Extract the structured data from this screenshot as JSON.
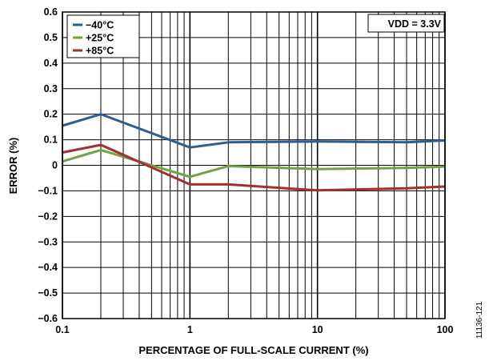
{
  "chart_data": {
    "type": "line",
    "x_scale": "log",
    "xlim": [
      0.1,
      100
    ],
    "ylim": [
      -0.6,
      0.6
    ],
    "xlabel": "PERCENTAGE OF FULL-SCALE CURRENT (%)",
    "ylabel": "ERROR (%)",
    "x_ticks": [
      {
        "value": 0.1,
        "label": "0.1"
      },
      {
        "value": 1,
        "label": "1"
      },
      {
        "value": 10,
        "label": "10"
      },
      {
        "value": 100,
        "label": "100"
      }
    ],
    "y_ticks": [
      {
        "value": 0.6,
        "label": "0.6"
      },
      {
        "value": 0.5,
        "label": "0.5"
      },
      {
        "value": 0.4,
        "label": "0.4"
      },
      {
        "value": 0.3,
        "label": "0.3"
      },
      {
        "value": 0.2,
        "label": "0.2"
      },
      {
        "value": 0.1,
        "label": "0.1"
      },
      {
        "value": 0,
        "label": "0"
      },
      {
        "value": -0.1,
        "label": "−0.1"
      },
      {
        "value": -0.2,
        "label": "−0.2"
      },
      {
        "value": -0.3,
        "label": "−0.3"
      },
      {
        "value": -0.4,
        "label": "−0.4"
      },
      {
        "value": -0.5,
        "label": "−0.5"
      },
      {
        "value": -0.6,
        "label": "−0.6"
      }
    ],
    "grid": true,
    "legend_position": "top-left",
    "annotation": "VDD = 3.3V",
    "figure_id": "11136-121",
    "series": [
      {
        "name": "−40°C",
        "color": "#2e5c96",
        "x": [
          0.1,
          0.2,
          1,
          2,
          10,
          50,
          100
        ],
        "y": [
          0.155,
          0.2,
          0.07,
          0.09,
          0.093,
          0.09,
          0.097
        ]
      },
      {
        "name": "+25°C",
        "color": "#72a044",
        "x": [
          0.1,
          0.2,
          1,
          2,
          10,
          50,
          100
        ],
        "y": [
          0.015,
          0.06,
          -0.045,
          -0.003,
          -0.015,
          -0.01,
          -0.005
        ]
      },
      {
        "name": "+85°C",
        "color": "#a32f2f",
        "x": [
          0.1,
          0.2,
          1,
          2,
          10,
          50,
          100
        ],
        "y": [
          0.05,
          0.08,
          -0.075,
          -0.075,
          -0.098,
          -0.09,
          -0.083
        ]
      }
    ]
  }
}
